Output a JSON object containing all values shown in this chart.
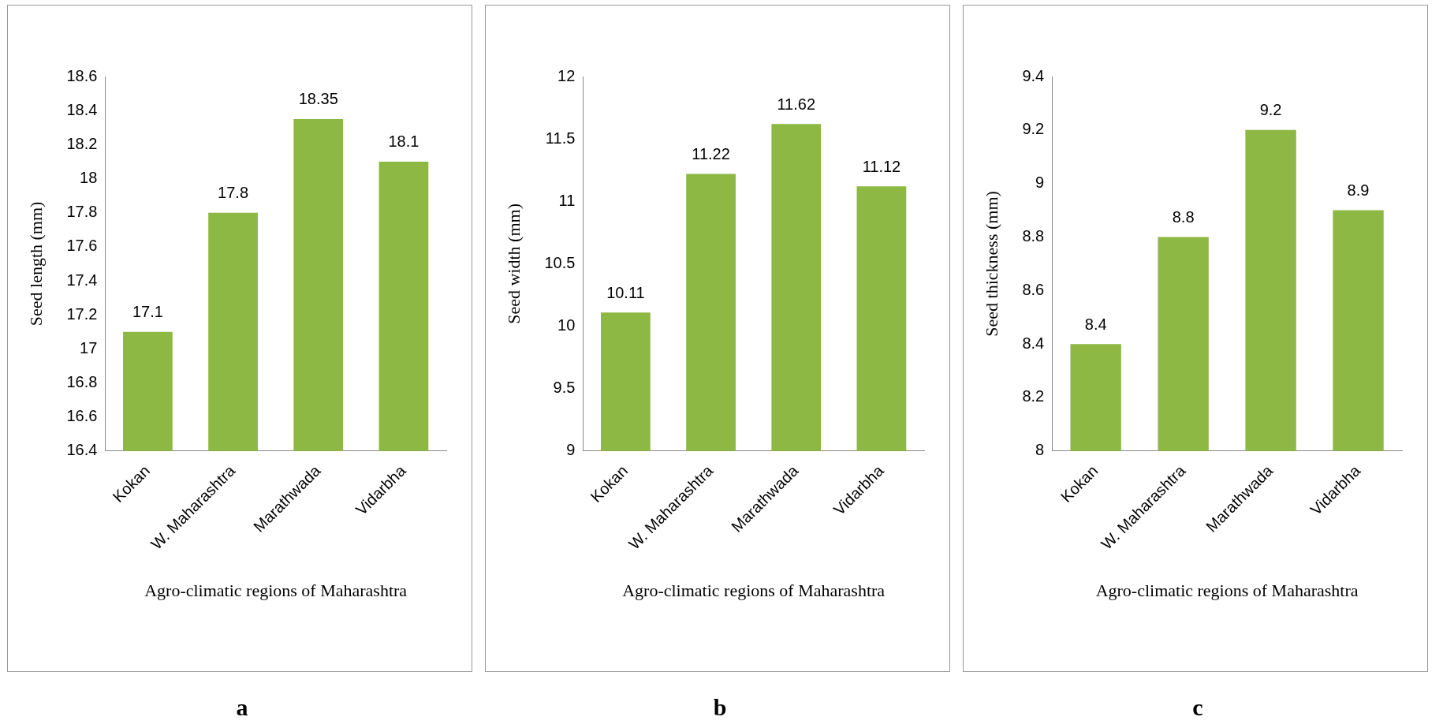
{
  "chart_data": [
    {
      "type": "bar",
      "title": "a",
      "categories": [
        "Kokan",
        "W. Maharashtra",
        "Marathwada",
        "Vidarbha"
      ],
      "values": [
        17.1,
        17.8,
        18.35,
        18.1
      ],
      "color": "#8db843",
      "ylim": [
        16.4,
        18.6
      ],
      "yticks": [
        16.4,
        16.6,
        16.8,
        17,
        17.2,
        17.4,
        17.6,
        17.8,
        18,
        18.2,
        18.4,
        18.6
      ],
      "xlabel": "Agro-climatic regions of Maharashtra",
      "ylabel": "Seed length (mm)",
      "data_labels": true,
      "grid": false,
      "legend": false
    },
    {
      "type": "bar",
      "title": "b",
      "categories": [
        "Kokan",
        "W. Maharashtra",
        "Marathwada",
        "Vidarbha"
      ],
      "values": [
        10.11,
        11.22,
        11.62,
        11.12
      ],
      "color": "#8db843",
      "ylim": [
        9,
        12
      ],
      "yticks": [
        9,
        9.5,
        10,
        10.5,
        11,
        11.5,
        12
      ],
      "xlabel": "Agro-climatic regions of Maharashtra",
      "ylabel": "Seed width (mm)",
      "data_labels": true,
      "grid": false,
      "legend": false
    },
    {
      "type": "bar",
      "title": "c",
      "categories": [
        "Kokan",
        "W. Maharashtra",
        "Marathwada",
        "Vidarbha"
      ],
      "values": [
        8.4,
        8.8,
        9.2,
        8.9
      ],
      "color": "#8db843",
      "ylim": [
        8,
        9.4
      ],
      "yticks": [
        8,
        8.2,
        8.4,
        8.6,
        8.8,
        9,
        9.2,
        9.4
      ],
      "xlabel": "Agro-climatic regions of Maharashtra",
      "ylabel": "Seed thickness (mm)",
      "data_labels": true,
      "grid": false,
      "legend": false
    }
  ]
}
